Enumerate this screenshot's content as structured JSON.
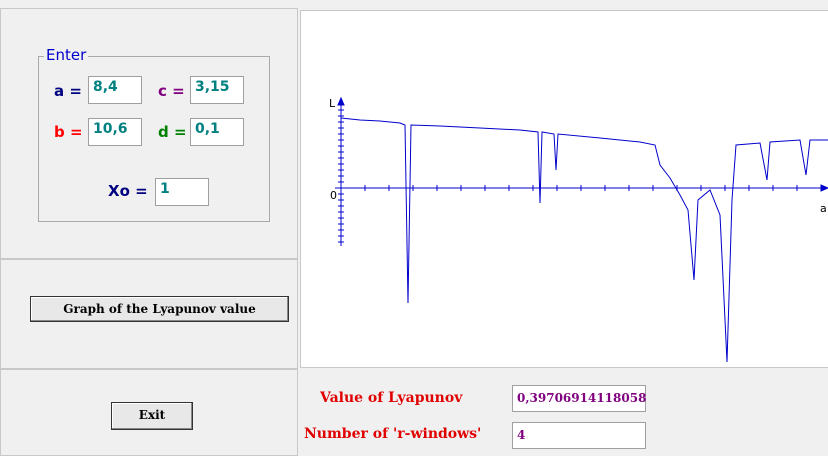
{
  "form": {
    "group_title": "Enter",
    "fields": [
      {
        "label": "a =",
        "value": "8,4"
      },
      {
        "label": "c =",
        "value": "3,15"
      },
      {
        "label": "b =",
        "value": "10,6"
      },
      {
        "label": "d =",
        "value": "0,1"
      },
      {
        "label": "Xo =",
        "value": "1"
      }
    ],
    "graph_button": "Graph of the Lyapunov value",
    "exit_button": "Exit"
  },
  "graph": {
    "y_axis_label": "L",
    "origin_label": "0",
    "x_axis_label": "a"
  },
  "results": [
    {
      "label": "Value of Lyapunov",
      "value": "0,39706914118058"
    },
    {
      "label": "Number of 'r-windows'",
      "value": "4"
    }
  ]
}
